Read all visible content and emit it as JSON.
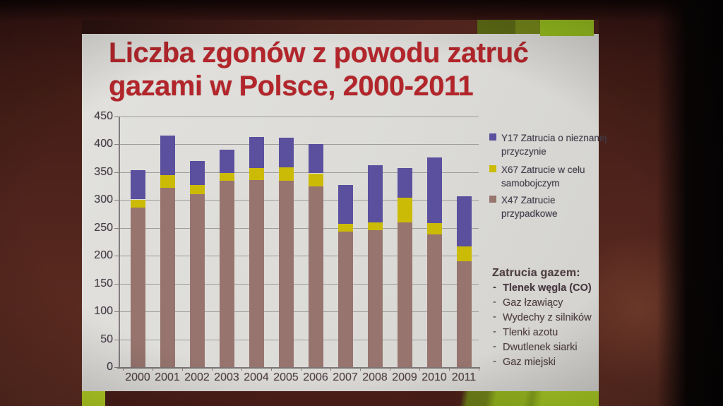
{
  "slide_title": {
    "line1": "Liczba zgonów z powodu zatruć",
    "line2": "gazami w Polsce, 2000-2011"
  },
  "chart_data": {
    "type": "bar",
    "stacked": true,
    "title": "Liczba zgonów z powodu zatruć gazami w Polsce, 2000-2011",
    "categories": [
      "2000",
      "2001",
      "2002",
      "2003",
      "2004",
      "2005",
      "2006",
      "2007",
      "2008",
      "2009",
      "2010",
      "2011"
    ],
    "series": [
      {
        "name": "Y17 Zatrucia o nieznanej przyczynie",
        "color": "#5a509e",
        "values": [
          53,
          71,
          43,
          41,
          55,
          53,
          52,
          70,
          103,
          53,
          117,
          90
        ]
      },
      {
        "name": "X67 Zatrucie w celu samobojczym",
        "color": "#cbbb06",
        "values": [
          14,
          23,
          16,
          14,
          22,
          24,
          24,
          13,
          14,
          44,
          21,
          27
        ]
      },
      {
        "name": "X47 Zatrucie przypadkowe",
        "color": "#97746e",
        "values": [
          287,
          322,
          311,
          335,
          336,
          335,
          324,
          244,
          246,
          260,
          238,
          190
        ]
      }
    ],
    "totals": [
      354,
      416,
      370,
      390,
      413,
      412,
      400,
      327,
      363,
      357,
      376,
      307
    ],
    "xlabel": "",
    "ylabel": "",
    "ylim": [
      0,
      450
    ],
    "yticks": [
      0,
      50,
      100,
      150,
      200,
      250,
      300,
      350,
      400,
      450
    ],
    "grid": true,
    "legend_position": "right"
  },
  "notes": {
    "heading": "Zatrucia gazem:",
    "items": [
      {
        "text": "Tlenek węgla (CO)",
        "bold": true
      },
      {
        "text": "Gaz łzawiący",
        "bold": false
      },
      {
        "text": "Wydechy z silników",
        "bold": false
      },
      {
        "text": "Tlenki azotu",
        "bold": false
      },
      {
        "text": "Dwutlenek siarki",
        "bold": false
      },
      {
        "text": "Gaz miejski",
        "bold": false
      }
    ]
  },
  "colors": {
    "title_red": "#b2262b",
    "slide_bg": "#dcdbd7",
    "photo_background": "#4c221b",
    "accent_green_bright": "#94bb1e",
    "accent_green_olive": "#5c6a15"
  }
}
